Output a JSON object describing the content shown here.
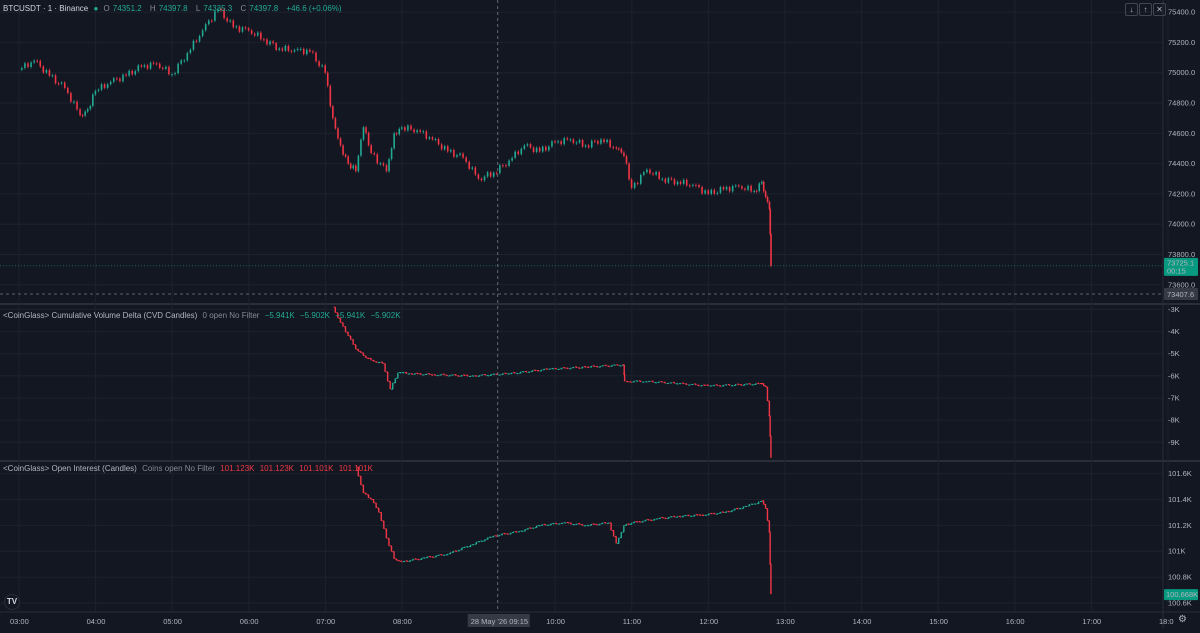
{
  "header": {
    "symbol": "BTCUSDT · 1 · Binance",
    "open_label": "O",
    "open": "74351.2",
    "high_label": "H",
    "high": "74397.8",
    "low_label": "L",
    "low": "74335.3",
    "close_label": "C",
    "close": "74397.8",
    "change": "+46.6 (+0.06%)"
  },
  "indicators": {
    "cvd": {
      "title": "<CoinGlass> Cumulative Volume Delta (CVD Candles)",
      "params": "0 open No Filter",
      "values": [
        "−5.941K",
        "−5.902K",
        "−5.941K",
        "−5.902K"
      ]
    },
    "oi": {
      "title": "<CoinGlass> Open Interest (Candles)",
      "params": "Coins open No Filter",
      "values": [
        "101.123K",
        "101.123K",
        "101.101K",
        "101.101K"
      ]
    }
  },
  "crosshair": {
    "time_label": "28 May '26   09:15",
    "price_label": "73407.6"
  },
  "last_price": {
    "value": "73725.1",
    "countdown": "00:15"
  },
  "oi_last": "100.668K",
  "time_ticks": [
    "03:00",
    "04:00",
    "05:00",
    "06:00",
    "07:00",
    "08:00",
    "10:00",
    "11:00",
    "12:00",
    "13:00",
    "14:00",
    "15:00",
    "16:00",
    "17:00",
    "18:0"
  ],
  "colors": {
    "up": "#22ab94",
    "down": "#f23645",
    "background": "#131722",
    "grid": "#1e222d"
  },
  "chart_data": [
    {
      "type": "line",
      "title": "BTCUSDT · 1 · Binance",
      "y_ticks": [
        "75400.0",
        "75200.0",
        "75000.0",
        "74800.0",
        "74600.0",
        "74400.0",
        "74200.0",
        "74000.0",
        "73800.0",
        "73600.0"
      ],
      "ylim": [
        73480,
        75480
      ],
      "series": [
        {
          "name": "BTCUSDT",
          "x": [
            3.0,
            3.2,
            3.4,
            3.6,
            3.8,
            3.9,
            4.0,
            4.2,
            4.4,
            4.6,
            4.8,
            5.0,
            5.2,
            5.4,
            5.6,
            5.8,
            6.0,
            6.2,
            6.4,
            6.6,
            6.8,
            7.0,
            7.1,
            7.2,
            7.3,
            7.4,
            7.5,
            7.6,
            7.8,
            7.9,
            8.0,
            8.2,
            8.4,
            8.6,
            8.8,
            9.0,
            9.2,
            9.4,
            9.6,
            9.8,
            10.0,
            10.2,
            10.4,
            10.6,
            10.8,
            10.9,
            11.0,
            11.2,
            11.4,
            11.6,
            11.8,
            12.0,
            12.2,
            12.4,
            12.6,
            12.7,
            12.75,
            12.8,
            12.82
          ],
          "values": [
            75020,
            75080,
            74980,
            74900,
            74720,
            74760,
            74880,
            74940,
            74980,
            75040,
            75060,
            74990,
            75130,
            75280,
            75420,
            75300,
            75280,
            75220,
            75160,
            75150,
            75140,
            75000,
            74700,
            74520,
            74400,
            74350,
            74640,
            74470,
            74350,
            74600,
            74640,
            74620,
            74560,
            74480,
            74440,
            74300,
            74340,
            74420,
            74520,
            74480,
            74540,
            74560,
            74520,
            74560,
            74500,
            74450,
            74240,
            74360,
            74300,
            74280,
            74260,
            74200,
            74230,
            74250,
            74220,
            74280,
            74180,
            74100,
            73725
          ]
        }
      ]
    },
    {
      "type": "line",
      "title": "<CoinGlass> Cumulative Volume Delta (CVD Candles)",
      "y_ticks": [
        "-3K",
        "-4K",
        "-5K",
        "-6K",
        "-7K",
        "-8K",
        "-9K"
      ],
      "ylim": [
        -9.8,
        -2.8
      ],
      "series": [
        {
          "name": "CVD",
          "x": [
            7.1,
            7.2,
            7.3,
            7.4,
            7.5,
            7.6,
            7.75,
            7.85,
            7.95,
            8.1,
            8.4,
            8.9,
            9.4,
            9.9,
            10.4,
            10.9,
            10.91,
            11.2,
            11.6,
            12.0,
            12.4,
            12.7,
            12.75,
            12.8,
            12.82
          ],
          "values": [
            -2.9,
            -3.6,
            -4.2,
            -4.8,
            -5.1,
            -5.3,
            -5.45,
            -6.6,
            -5.85,
            -5.9,
            -5.95,
            -6.0,
            -5.9,
            -5.7,
            -5.6,
            -5.5,
            -6.25,
            -6.25,
            -6.35,
            -6.45,
            -6.4,
            -6.35,
            -6.5,
            -7.8,
            -9.7
          ]
        }
      ]
    },
    {
      "type": "line",
      "title": "<CoinGlass> Open Interest (Candles)",
      "y_ticks": [
        "101.6K",
        "101.4K",
        "101.2K",
        "101K",
        "100.8K",
        "100.6K"
      ],
      "ylim": [
        100.53,
        101.69
      ],
      "series": [
        {
          "name": "Open Interest",
          "x": [
            7.4,
            7.5,
            7.6,
            7.7,
            7.8,
            7.9,
            8.0,
            8.3,
            8.6,
            8.9,
            9.2,
            9.5,
            9.8,
            10.1,
            10.4,
            10.7,
            10.8,
            10.9,
            11.0,
            11.3,
            11.6,
            11.9,
            12.2,
            12.5,
            12.7,
            12.75,
            12.8,
            12.82
          ],
          "values": [
            101.65,
            101.45,
            101.4,
            101.3,
            101.1,
            100.94,
            100.92,
            100.95,
            100.98,
            101.05,
            101.12,
            101.15,
            101.2,
            101.22,
            101.2,
            101.22,
            101.06,
            101.2,
            101.22,
            101.25,
            101.27,
            101.28,
            101.3,
            101.35,
            101.39,
            101.33,
            101.15,
            100.668
          ]
        }
      ]
    }
  ]
}
